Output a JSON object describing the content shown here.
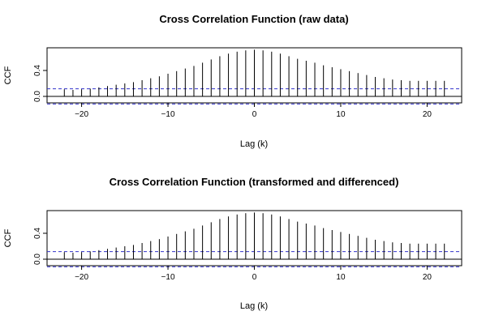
{
  "chart_data": [
    {
      "type": "bar",
      "style": "needle",
      "title": "Cross Correlation Function (raw data)",
      "xlabel": "Lag (k)",
      "ylabel": "CCF",
      "xlim": [
        -24,
        24
      ],
      "ylim": [
        -0.1,
        0.75
      ],
      "x_ticks": [
        -20,
        -10,
        0,
        10,
        20
      ],
      "y_ticks": [
        0.0,
        0.4
      ],
      "y_tick_labels": [
        "0.0",
        "0.4"
      ],
      "confidence_bounds": [
        0.117,
        -0.117
      ],
      "lags": [
        -22,
        -21,
        -20,
        -19,
        -18,
        -17,
        -16,
        -15,
        -14,
        -13,
        -12,
        -11,
        -10,
        -9,
        -8,
        -7,
        -6,
        -5,
        -4,
        -3,
        -2,
        -1,
        0,
        1,
        2,
        3,
        4,
        5,
        6,
        7,
        8,
        9,
        10,
        11,
        12,
        13,
        14,
        15,
        16,
        17,
        18,
        19,
        20,
        21,
        22
      ],
      "values": [
        0.11,
        0.1,
        0.11,
        0.12,
        0.14,
        0.16,
        0.18,
        0.2,
        0.22,
        0.25,
        0.28,
        0.31,
        0.35,
        0.39,
        0.43,
        0.47,
        0.52,
        0.57,
        0.62,
        0.66,
        0.69,
        0.71,
        0.72,
        0.71,
        0.69,
        0.66,
        0.62,
        0.58,
        0.55,
        0.52,
        0.48,
        0.45,
        0.42,
        0.39,
        0.36,
        0.33,
        0.3,
        0.28,
        0.26,
        0.25,
        0.24,
        0.24,
        0.24,
        0.24,
        0.24
      ],
      "colors": {
        "needle": "#000000",
        "zero_line": "#000000",
        "bounds": "#3333cc",
        "frame": "#000000"
      }
    },
    {
      "type": "bar",
      "style": "needle",
      "title": "Cross Correlation Function (transformed and differenced)",
      "xlabel": "Lag (k)",
      "ylabel": "CCF",
      "xlim": [
        -24,
        24
      ],
      "ylim": [
        -0.1,
        0.75
      ],
      "x_ticks": [
        -20,
        -10,
        0,
        10,
        20
      ],
      "y_ticks": [
        0.0,
        0.4
      ],
      "y_tick_labels": [
        "0.0",
        "0.4"
      ],
      "confidence_bounds": [
        0.117,
        -0.117
      ],
      "lags": [
        -22,
        -21,
        -20,
        -19,
        -18,
        -17,
        -16,
        -15,
        -14,
        -13,
        -12,
        -11,
        -10,
        -9,
        -8,
        -7,
        -6,
        -5,
        -4,
        -3,
        -2,
        -1,
        0,
        1,
        2,
        3,
        4,
        5,
        6,
        7,
        8,
        9,
        10,
        11,
        12,
        13,
        14,
        15,
        16,
        17,
        18,
        19,
        20,
        21,
        22
      ],
      "values": [
        0.11,
        0.1,
        0.11,
        0.12,
        0.14,
        0.16,
        0.18,
        0.2,
        0.22,
        0.25,
        0.28,
        0.31,
        0.35,
        0.39,
        0.43,
        0.47,
        0.52,
        0.57,
        0.62,
        0.66,
        0.69,
        0.71,
        0.72,
        0.71,
        0.69,
        0.66,
        0.62,
        0.58,
        0.55,
        0.52,
        0.48,
        0.45,
        0.42,
        0.39,
        0.36,
        0.33,
        0.3,
        0.28,
        0.26,
        0.25,
        0.24,
        0.24,
        0.24,
        0.24,
        0.24
      ],
      "colors": {
        "needle": "#000000",
        "zero_line": "#000000",
        "bounds": "#3333cc",
        "frame": "#000000"
      }
    }
  ]
}
